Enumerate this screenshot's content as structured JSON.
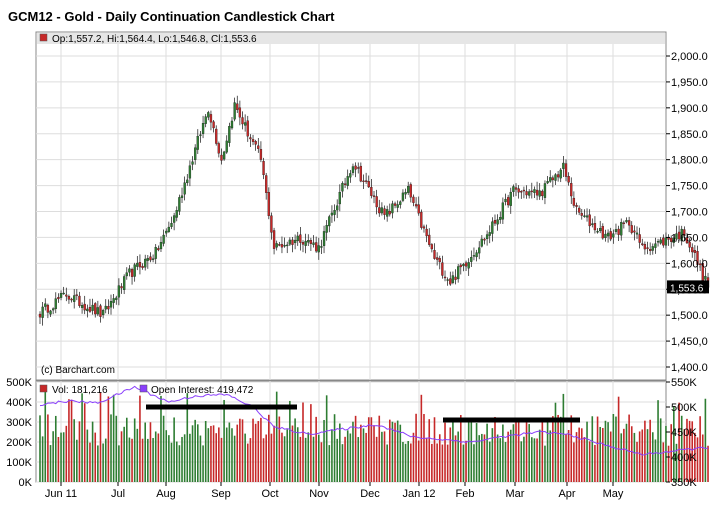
{
  "title": "GCM12 - Gold - Daily Continuation Candlestick Chart",
  "ohlc_label": "Op:1,557.2, Hi:1,564.4, Lo:1,546.8, Cl:1,553.6",
  "credit": "(c) Barchart.com",
  "last_price_label": "1,553.6",
  "volume_label": "Vol: 181,216",
  "open_interest_label": "Open Interest: 419,472",
  "colors": {
    "up": "#2e7d32",
    "down": "#c62828",
    "open_interest": "#8a3ffc",
    "last_price_box": "#000000",
    "grid": "#dddddd"
  },
  "chart_data": [
    {
      "type": "candlestick",
      "title": "GCM12 - Gold - Daily Continuation Candlestick Chart",
      "x_ticks": [
        "Jun 11",
        "Jul",
        "Aug",
        "Sep",
        "Oct",
        "Nov",
        "Dec",
        "Jan 12",
        "Feb",
        "Mar",
        "Apr",
        "May"
      ],
      "y_ticks": [
        "1,400.0",
        "1,450,0",
        "1,500.0",
        "1,550.0",
        "1,600.0",
        "1,650.0",
        "1,700.0",
        "1,750.0",
        "1,800.0",
        "1,850.0",
        "1,900.0",
        "1,950.0",
        "2,000.0"
      ],
      "ylim": [
        1400,
        2000
      ],
      "last_close": 1553.6,
      "approx_close_path": [
        {
          "x": "2011-05-25",
          "close": 1505
        },
        {
          "x": "2011-06-08",
          "close": 1540
        },
        {
          "x": "2011-06-28",
          "close": 1500
        },
        {
          "x": "2011-07-12",
          "close": 1580
        },
        {
          "x": "2011-07-26",
          "close": 1620
        },
        {
          "x": "2011-08-05",
          "close": 1690
        },
        {
          "x": "2011-08-22",
          "close": 1900
        },
        {
          "x": "2011-08-30",
          "close": 1800
        },
        {
          "x": "2011-09-06",
          "close": 1905
        },
        {
          "x": "2011-09-20",
          "close": 1800
        },
        {
          "x": "2011-09-26",
          "close": 1630
        },
        {
          "x": "2011-10-10",
          "close": 1650
        },
        {
          "x": "2011-10-20",
          "close": 1630
        },
        {
          "x": "2011-11-08",
          "close": 1795
        },
        {
          "x": "2011-11-25",
          "close": 1690
        },
        {
          "x": "2011-12-07",
          "close": 1740
        },
        {
          "x": "2011-12-21",
          "close": 1610
        },
        {
          "x": "2011-12-29",
          "close": 1565
        },
        {
          "x": "2012-01-18",
          "close": 1655
        },
        {
          "x": "2012-02-01",
          "close": 1740
        },
        {
          "x": "2012-02-15",
          "close": 1735
        },
        {
          "x": "2012-02-28",
          "close": 1785
        },
        {
          "x": "2012-03-06",
          "close": 1700
        },
        {
          "x": "2012-03-22",
          "close": 1650
        },
        {
          "x": "2012-04-03",
          "close": 1680
        },
        {
          "x": "2012-04-09",
          "close": 1630
        },
        {
          "x": "2012-04-19",
          "close": 1640
        },
        {
          "x": "2012-05-02",
          "close": 1660
        },
        {
          "x": "2012-05-15",
          "close": 1553.6
        }
      ]
    },
    {
      "type": "bar+line",
      "y_ticks_left": [
        "0K",
        "100K",
        "200K",
        "300K",
        "400K",
        "500K"
      ],
      "y_ticks_right": [
        "350K",
        "400K",
        "450K",
        "500K",
        "550K"
      ],
      "volume_ylim": [
        0,
        500000
      ],
      "open_interest_ylim": [
        350000,
        550000
      ],
      "series": [
        {
          "name": "Vol: 181,216",
          "last_value": 181216
        },
        {
          "name": "Open Interest: 419,472",
          "last_value": 419472,
          "approx_path": [
            {
              "x": "2011-05-25",
              "value": 505000
            },
            {
              "x": "2011-06-10",
              "value": 512000
            },
            {
              "x": "2011-06-25",
              "value": 508000
            },
            {
              "x": "2011-07-15",
              "value": 540000
            },
            {
              "x": "2011-08-01",
              "value": 510000
            },
            {
              "x": "2011-08-15",
              "value": 522000
            },
            {
              "x": "2011-09-01",
              "value": 525000
            },
            {
              "x": "2011-09-15",
              "value": 500000
            },
            {
              "x": "2011-09-26",
              "value": 460000
            },
            {
              "x": "2011-10-15",
              "value": 446000
            },
            {
              "x": "2011-11-01",
              "value": 455000
            },
            {
              "x": "2011-11-20",
              "value": 465000
            },
            {
              "x": "2011-12-10",
              "value": 440000
            },
            {
              "x": "2012-01-10",
              "value": 430000
            },
            {
              "x": "2012-01-25",
              "value": 440000
            },
            {
              "x": "2012-02-15",
              "value": 450000
            },
            {
              "x": "2012-03-01",
              "value": 445000
            },
            {
              "x": "2012-03-20",
              "value": 425000
            },
            {
              "x": "2012-04-10",
              "value": 405000
            },
            {
              "x": "2012-05-15",
              "value": 419472
            }
          ]
        }
      ]
    }
  ]
}
